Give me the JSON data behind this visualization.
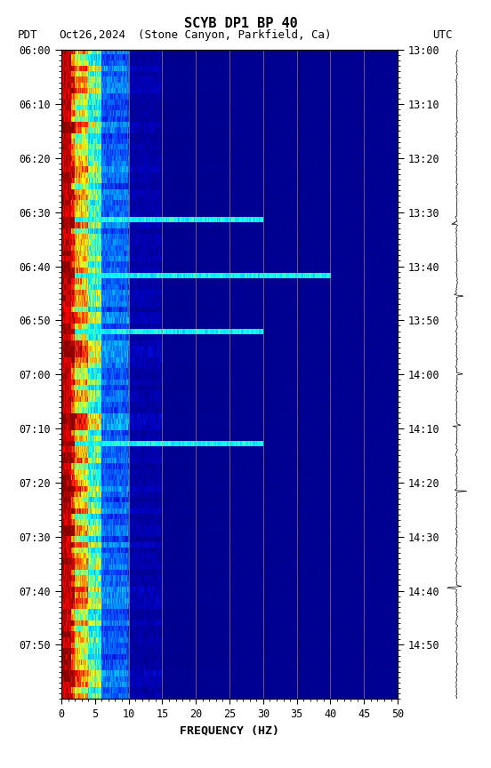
{
  "title_line1": "SCYB DP1 BP 40",
  "title_line2_pdt": "PDT",
  "title_line2_date": "Oct26,2024",
  "title_line2_loc": "(Stone Canyon, Parkfield, Ca)",
  "title_line2_utc": "UTC",
  "xlabel": "FREQUENCY (HZ)",
  "freq_min": 0,
  "freq_max": 50,
  "left_time_ticks": [
    "06:00",
    "06:10",
    "06:20",
    "06:30",
    "06:40",
    "06:50",
    "07:00",
    "07:10",
    "07:20",
    "07:30",
    "07:40",
    "07:50"
  ],
  "right_time_ticks": [
    "13:00",
    "13:10",
    "13:20",
    "13:30",
    "13:40",
    "13:50",
    "14:00",
    "14:10",
    "14:20",
    "14:30",
    "14:40",
    "14:50"
  ],
  "freq_ticks": [
    0,
    5,
    10,
    15,
    20,
    25,
    30,
    35,
    40,
    45,
    50
  ],
  "background_color": "#ffffff",
  "n_time_bins": 116,
  "n_freq_bins": 500,
  "seed": 42,
  "font_family": "monospace",
  "colormap": [
    [
      0.0,
      "#00008B"
    ],
    [
      0.1,
      "#000096"
    ],
    [
      0.18,
      "#0000CD"
    ],
    [
      0.26,
      "#0040FF"
    ],
    [
      0.34,
      "#0080FF"
    ],
    [
      0.42,
      "#00BFFF"
    ],
    [
      0.5,
      "#00FFFF"
    ],
    [
      0.58,
      "#80FF80"
    ],
    [
      0.65,
      "#FFFF00"
    ],
    [
      0.73,
      "#FFA500"
    ],
    [
      0.82,
      "#FF4000"
    ],
    [
      0.91,
      "#FF0000"
    ],
    [
      1.0,
      "#8B0000"
    ]
  ]
}
